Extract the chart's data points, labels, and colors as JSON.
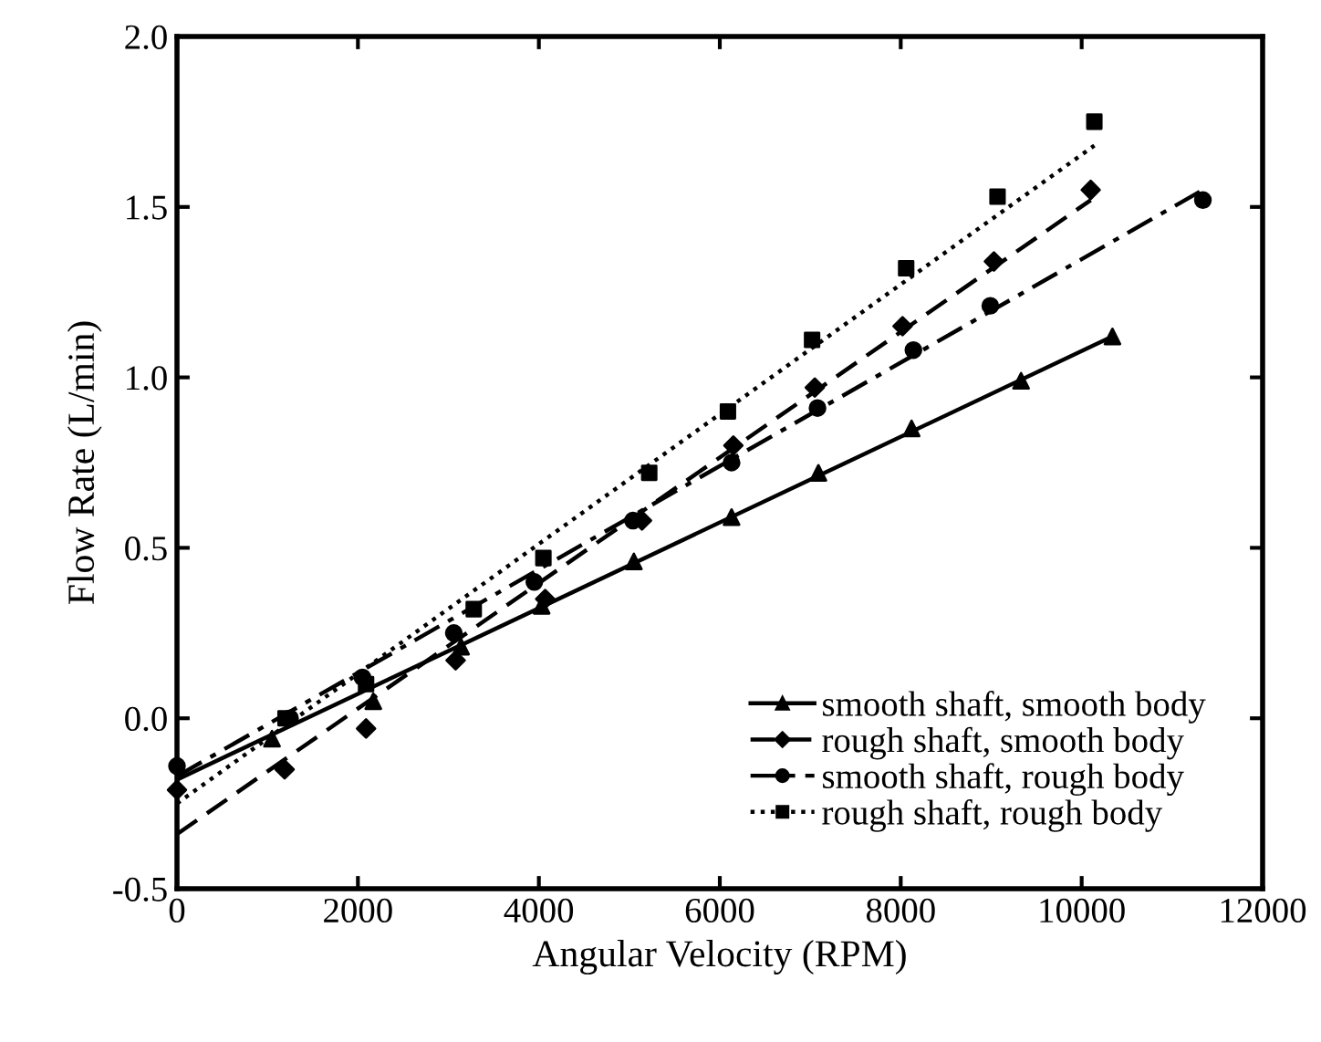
{
  "chart_data": {
    "type": "scatter",
    "xlabel": "Angular Velocity (RPM)",
    "ylabel": "Flow Rate (L/min)",
    "xlim": [
      0,
      12000
    ],
    "xticks": [
      0,
      2000,
      4000,
      6000,
      8000,
      10000,
      12000
    ],
    "ylim": [
      -0.5,
      2.0
    ],
    "yticks": [
      {
        "value": -0.5,
        "label": "-0.5"
      },
      {
        "value": 0,
        "label": "0.0"
      },
      {
        "value": 0.5,
        "label": "0.5"
      },
      {
        "value": 1.0,
        "label": "1.0"
      },
      {
        "value": 1.5,
        "label": "1.5"
      },
      {
        "value": 2.0,
        "label": "2.0"
      }
    ],
    "grid": false,
    "legend": "bottom right",
    "series": [
      {
        "name": "smooth shaft, smooth body",
        "marker": "triangle",
        "color": "#000000",
        "x": [
          1050,
          2170,
          3140,
          4030,
          5050,
          6130,
          7090,
          8120,
          9330,
          10340
        ],
        "values": [
          -0.06,
          0.05,
          0.21,
          0.33,
          0.46,
          0.59,
          0.72,
          0.85,
          0.99,
          1.12
        ]
      },
      {
        "type": "line",
        "line_style": "solid",
        "color": "#000000",
        "x": [
          0,
          10340
        ],
        "values": [
          -0.18,
          1.12
        ]
      },
      {
        "name": "rough shaft, smooth body",
        "marker": "diamond",
        "color": "#000000",
        "x": [
          0,
          1190,
          2090,
          3080,
          4070,
          5140,
          6150,
          7050,
          8020,
          9030,
          10100
        ],
        "values": [
          -0.21,
          -0.15,
          -0.03,
          0.17,
          0.35,
          0.58,
          0.8,
          0.97,
          1.15,
          1.34,
          1.55
        ]
      },
      {
        "type": "line",
        "line_style": "dashed",
        "color": "#000000",
        "x": [
          0,
          10100
        ],
        "values": [
          -0.34,
          1.52
        ]
      },
      {
        "name": "smooth shaft, rough body",
        "marker": "circle",
        "color": "#000000",
        "x": [
          0,
          1250,
          2050,
          3060,
          3950,
          5040,
          6130,
          7080,
          8140,
          8990,
          11340
        ],
        "values": [
          -0.14,
          0.0,
          0.12,
          0.25,
          0.4,
          0.58,
          0.75,
          0.91,
          1.08,
          1.21,
          1.52
        ]
      },
      {
        "type": "line",
        "line_style": "dashdot",
        "color": "#000000",
        "x": [
          0,
          11340
        ],
        "values": [
          -0.17,
          1.55
        ]
      },
      {
        "name": "rough shaft, rough body",
        "marker": "square",
        "color": "#000000",
        "x": [
          1200,
          2090,
          3280,
          4050,
          5220,
          6090,
          7020,
          8060,
          9070,
          10140
        ],
        "values": [
          0.0,
          0.1,
          0.32,
          0.47,
          0.72,
          0.9,
          1.11,
          1.32,
          1.53,
          1.75
        ]
      },
      {
        "type": "line",
        "line_style": "dotted",
        "color": "#000000",
        "x": [
          0,
          10140
        ],
        "values": [
          -0.25,
          1.68
        ]
      }
    ]
  }
}
